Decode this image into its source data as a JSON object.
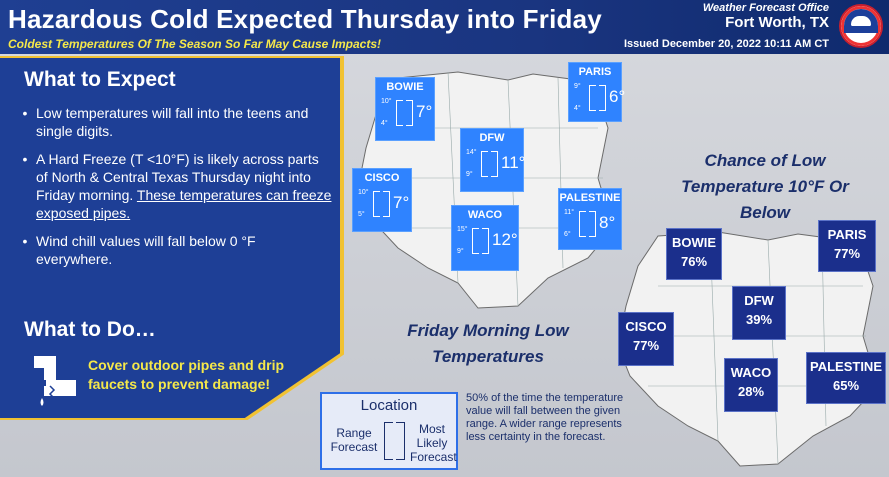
{
  "header": {
    "title": "Hazardous Cold Expected Thursday into Friday",
    "subtitle": "Coldest Temperatures Of The Season So Far May Cause Impacts!",
    "wfo_label": "Weather Forecast Office",
    "wfo_city": "Fort Worth, TX",
    "issued": "Issued December 20, 2022 10:11 AM CT"
  },
  "panel": {
    "expect_title": "What to Expect",
    "bullets": [
      "Low temperatures will fall into the teens and single digits.",
      "A Hard Freeze (T <10°F) is likely across parts of North & Central Texas Thursday night into Friday morning.",
      "These temperatures can freeze exposed pipes.",
      "Wind chill values will fall below 0 °F everywhere."
    ],
    "todo_title": "What to Do…",
    "todo_text": "Cover outdoor pipes and drip faucets to prevent damage!"
  },
  "low_map": {
    "caption": "Friday Morning Low Temperatures",
    "cities": [
      {
        "name": "BOWIE",
        "hi": "10°",
        "lo": "4°",
        "val": "7°"
      },
      {
        "name": "PARIS",
        "hi": "9°",
        "lo": "4°",
        "val": "6°"
      },
      {
        "name": "DFW",
        "hi": "14°",
        "lo": "9°",
        "val": "11°"
      },
      {
        "name": "CISCO",
        "hi": "10°",
        "lo": "5°",
        "val": "7°"
      },
      {
        "name": "PALESTINE",
        "hi": "11°",
        "lo": "6°",
        "val": "8°"
      },
      {
        "name": "WACO",
        "hi": "15°",
        "lo": "9°",
        "val": "12°"
      }
    ]
  },
  "chance_map": {
    "title": "Chance of Low Temperature 10°F Or Below",
    "cities": [
      {
        "name": "BOWIE",
        "pct": "76%"
      },
      {
        "name": "PARIS",
        "pct": "77%"
      },
      {
        "name": "DFW",
        "pct": "39%"
      },
      {
        "name": "CISCO",
        "pct": "77%"
      },
      {
        "name": "WACO",
        "pct": "28%"
      },
      {
        "name": "PALESTINE",
        "pct": "65%"
      }
    ]
  },
  "legend": {
    "title": "Location",
    "range": "Range Forecast",
    "most_likely": "Most Likely Forecast",
    "note": "50% of the time the temperature value will fall between the given range. A wider range represents less certainty in the forecast."
  },
  "colors": {
    "header_bg": "#1f3f92",
    "panel_bg": "#1e3f96",
    "accent_yellow": "#f1c232",
    "low_box": "#2f83ff",
    "chance_box": "#1b2f8c"
  }
}
